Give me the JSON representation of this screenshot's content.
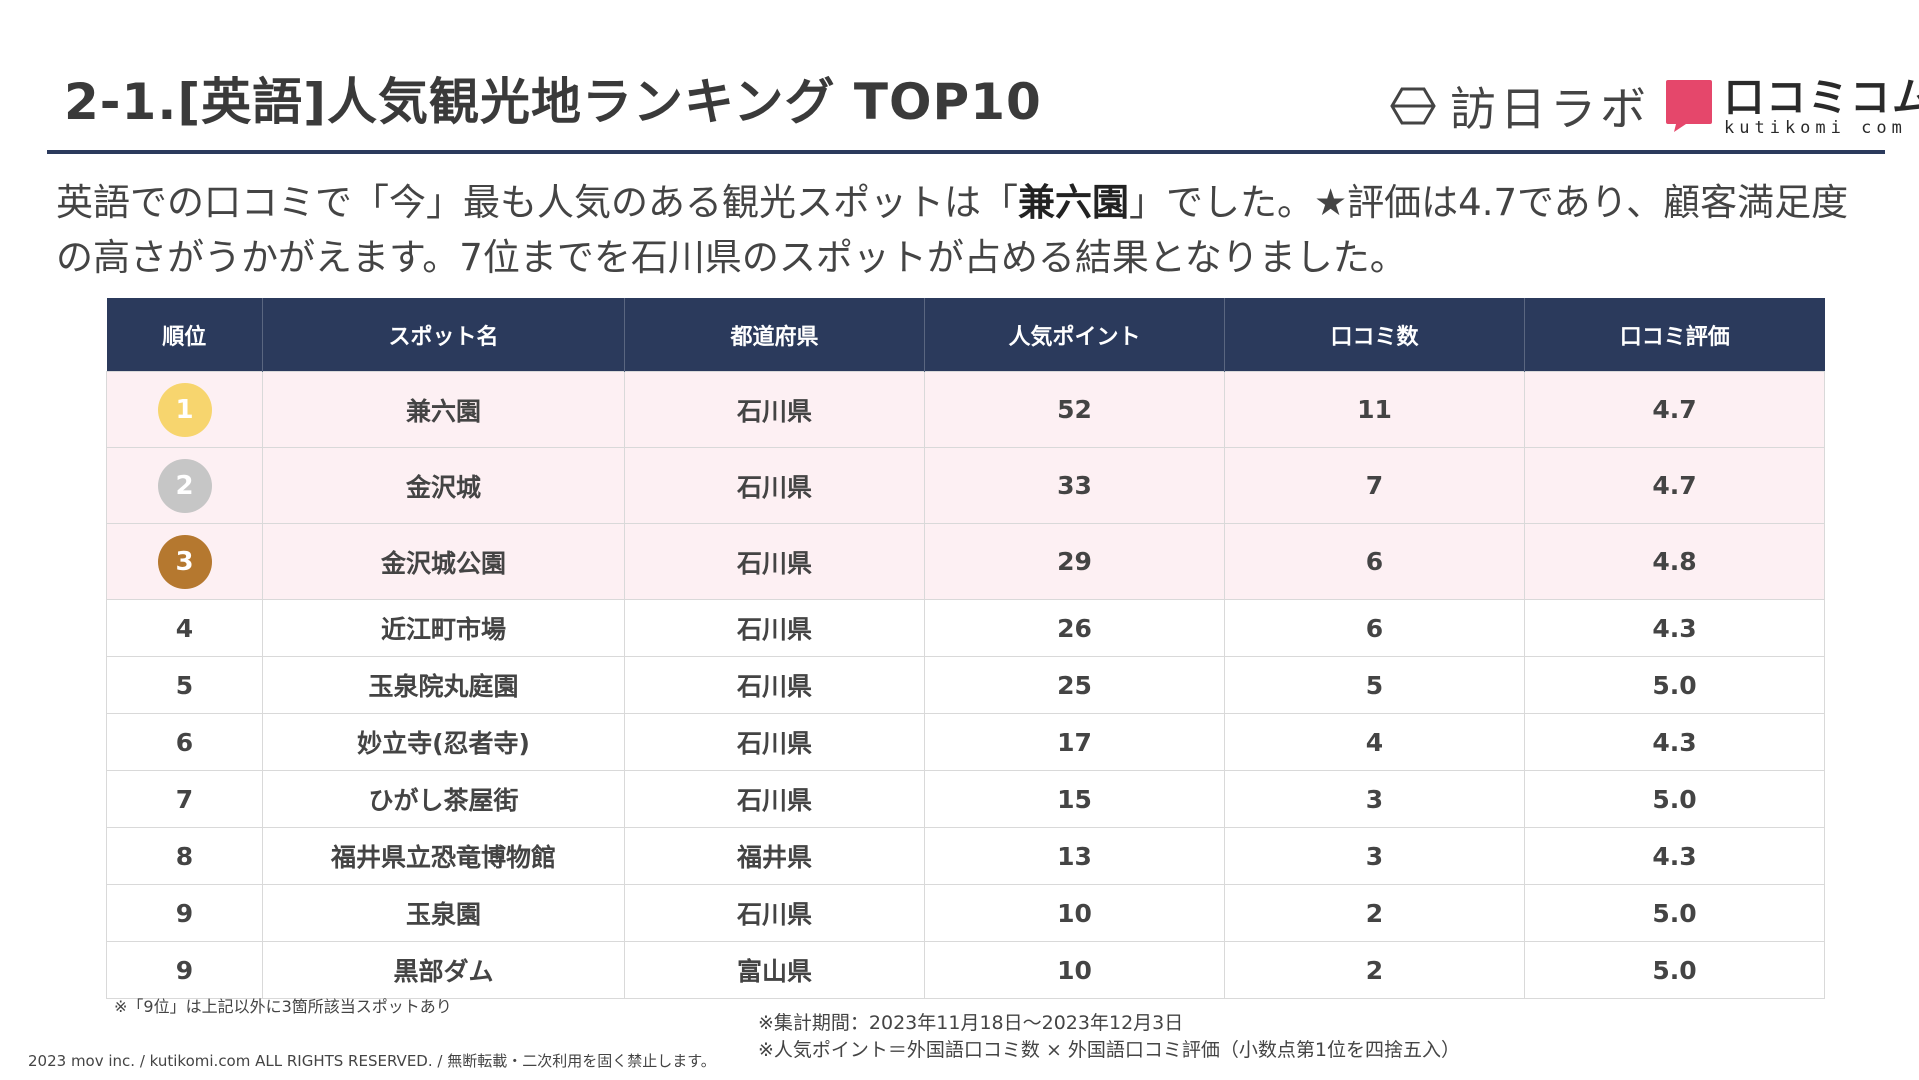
{
  "title": "2-1.[英語]人気観光地ランキング TOP10",
  "logos": {
    "houjin": "訪日ラボ",
    "kutikomi_jp": "口コミコム",
    "kutikomi_en": "kutikomi com",
    "kutikomi_color": "#e5476b"
  },
  "lead": {
    "part1": "英語での口コミで「今」最も人気のある観光スポットは「",
    "highlight": "兼六園",
    "part2": "」でした。★評価は4.7であり、顧客満足度の高さがうかがえます。7位までを石川県のスポットが占める結果となりました。"
  },
  "table": {
    "headers": [
      "順位",
      "スポット名",
      "都道府県",
      "人気ポイント",
      "口コミ数",
      "口コミ評価"
    ],
    "rows": [
      {
        "rank": "1",
        "name": "兼六園",
        "pref": "石川県",
        "points": "52",
        "reviews": "11",
        "rating": "4.7"
      },
      {
        "rank": "2",
        "name": "金沢城",
        "pref": "石川県",
        "points": "33",
        "reviews": "7",
        "rating": "4.7"
      },
      {
        "rank": "3",
        "name": "金沢城公園",
        "pref": "石川県",
        "points": "29",
        "reviews": "6",
        "rating": "4.8"
      },
      {
        "rank": "4",
        "name": "近江町市場",
        "pref": "石川県",
        "points": "26",
        "reviews": "6",
        "rating": "4.3"
      },
      {
        "rank": "5",
        "name": "玉泉院丸庭園",
        "pref": "石川県",
        "points": "25",
        "reviews": "5",
        "rating": "5.0"
      },
      {
        "rank": "6",
        "name": "妙立寺(忍者寺)",
        "pref": "石川県",
        "points": "17",
        "reviews": "4",
        "rating": "4.3"
      },
      {
        "rank": "7",
        "name": "ひがし茶屋街",
        "pref": "石川県",
        "points": "15",
        "reviews": "3",
        "rating": "5.0"
      },
      {
        "rank": "8",
        "name": "福井県立恐竜博物館",
        "pref": "福井県",
        "points": "13",
        "reviews": "3",
        "rating": "4.3"
      },
      {
        "rank": "9",
        "name": "玉泉園",
        "pref": "石川県",
        "points": "10",
        "reviews": "2",
        "rating": "5.0"
      },
      {
        "rank": "9",
        "name": "黒部ダム",
        "pref": "富山県",
        "points": "10",
        "reviews": "2",
        "rating": "5.0"
      }
    ]
  },
  "notes": {
    "tie": "※「9位」は上記以外に3箇所該当スポットあり",
    "period": "※集計期間：2023年11月18日～2023年12月3日",
    "formula": "※人気ポイント＝外国語口コミ数 × 外国語口コミ評価（小数点第1位を四捨五入）"
  },
  "copyright": "2023 mov inc. / kutikomi.com ALL RIGHTS RESERVED. / 無断転載・二次利用を固く禁止します。"
}
